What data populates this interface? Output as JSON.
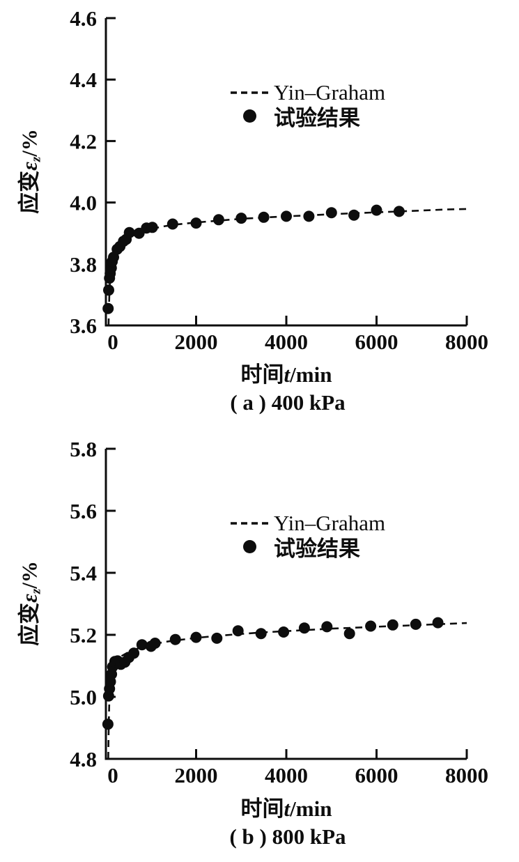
{
  "page_background": "#ffffff",
  "ink_color": "#0d0d0d",
  "chart_data": [
    {
      "type": "scatter",
      "title": "( a ) 400 kPa",
      "xlabel": "时间t/min",
      "xlabel_cjk": "时间",
      "xlabel_var": "t",
      "xlabel_rest": "/min",
      "ylabel": "应变εz/%",
      "ylabel_cjk": "应变",
      "ylabel_var": "ε",
      "ylabel_sub": "z",
      "ylabel_rest": "/%",
      "xlim": [
        0,
        8000
      ],
      "ylim": [
        3.6,
        4.6
      ],
      "xticks": [
        0,
        2000,
        4000,
        6000,
        8000
      ],
      "xtick_labels": [
        "0",
        "2000",
        "4000",
        "6000",
        "8000"
      ],
      "yticks": [
        3.6,
        3.8,
        4.0,
        4.2,
        4.4,
        4.6
      ],
      "ytick_labels": [
        "3.6",
        "3.8",
        "4.0",
        "4.2",
        "4.4",
        "4.6"
      ],
      "grid": false,
      "legend_position": "upper-center",
      "legend": [
        "Yin–Graham",
        "试验结果"
      ],
      "series": [
        {
          "name": "Yin–Graham",
          "style": "dashed-line",
          "points": [
            [
              58,
              3.6
            ],
            [
              66,
              3.65
            ],
            [
              75,
              3.695
            ],
            [
              90,
              3.74
            ],
            [
              110,
              3.775
            ],
            [
              140,
              3.805
            ],
            [
              190,
              3.828
            ],
            [
              260,
              3.848
            ],
            [
              350,
              3.864
            ],
            [
              460,
              3.878
            ],
            [
              600,
              3.892
            ],
            [
              800,
              3.905
            ],
            [
              1000,
              3.914
            ],
            [
              1300,
              3.923
            ],
            [
              1600,
              3.929
            ],
            [
              2000,
              3.935
            ],
            [
              2500,
              3.941
            ],
            [
              3000,
              3.947
            ],
            [
              3500,
              3.951
            ],
            [
              4000,
              3.955
            ],
            [
              4500,
              3.958
            ],
            [
              5000,
              3.962
            ],
            [
              5500,
              3.965
            ],
            [
              6000,
              3.968
            ],
            [
              6500,
              3.971
            ],
            [
              7000,
              3.974
            ],
            [
              7500,
              3.977
            ],
            [
              8000,
              3.979
            ]
          ]
        },
        {
          "name": "试验结果",
          "style": "scatter",
          "points": [
            [
              50,
              3.655
            ],
            [
              62,
              3.715
            ],
            [
              80,
              3.754
            ],
            [
              95,
              3.769
            ],
            [
              120,
              3.787
            ],
            [
              140,
              3.808
            ],
            [
              170,
              3.822
            ],
            [
              250,
              3.848
            ],
            [
              310,
              3.857
            ],
            [
              390,
              3.874
            ],
            [
              450,
              3.88
            ],
            [
              520,
              3.902
            ],
            [
              735,
              3.9
            ],
            [
              900,
              3.917
            ],
            [
              1030,
              3.919
            ],
            [
              1480,
              3.93
            ],
            [
              2000,
              3.933
            ],
            [
              2500,
              3.944
            ],
            [
              3000,
              3.949
            ],
            [
              3500,
              3.952
            ],
            [
              4000,
              3.955
            ],
            [
              4500,
              3.955
            ],
            [
              5000,
              3.967
            ],
            [
              5500,
              3.959
            ],
            [
              6000,
              3.975
            ],
            [
              6500,
              3.971
            ]
          ]
        }
      ]
    },
    {
      "type": "scatter",
      "title": "( b ) 800 kPa",
      "xlabel": "时间t/min",
      "xlabel_cjk": "时间",
      "xlabel_var": "t",
      "xlabel_rest": "/min",
      "ylabel": "应变εz/%",
      "ylabel_cjk": "应变",
      "ylabel_var": "ε",
      "ylabel_sub": "z",
      "ylabel_rest": "/%",
      "xlim": [
        0,
        8000
      ],
      "ylim": [
        4.8,
        5.8
      ],
      "xticks": [
        0,
        2000,
        4000,
        6000,
        8000
      ],
      "xtick_labels": [
        "0",
        "2000",
        "4000",
        "6000",
        "8000"
      ],
      "yticks": [
        4.8,
        5.0,
        5.2,
        5.4,
        5.6,
        5.8
      ],
      "ytick_labels": [
        "4.8",
        "5.0",
        "5.2",
        "5.4",
        "5.6",
        "5.8"
      ],
      "grid": false,
      "legend_position": "upper-center",
      "legend": [
        "Yin–Graham",
        "试验结果"
      ],
      "series": [
        {
          "name": "Yin–Graham",
          "style": "dashed-line",
          "points": [
            [
              52,
              4.8
            ],
            [
              58,
              4.87
            ],
            [
              66,
              4.93
            ],
            [
              76,
              4.985
            ],
            [
              90,
              5.03
            ],
            [
              110,
              5.065
            ],
            [
              140,
              5.092
            ],
            [
              190,
              5.11
            ],
            [
              260,
              5.122
            ],
            [
              350,
              5.132
            ],
            [
              460,
              5.141
            ],
            [
              600,
              5.15
            ],
            [
              800,
              5.161
            ],
            [
              1000,
              5.168
            ],
            [
              1300,
              5.177
            ],
            [
              1600,
              5.183
            ],
            [
              2000,
              5.19
            ],
            [
              2500,
              5.197
            ],
            [
              3000,
              5.203
            ],
            [
              3500,
              5.208
            ],
            [
              4000,
              5.212
            ],
            [
              4500,
              5.216
            ],
            [
              5000,
              5.22
            ],
            [
              5500,
              5.223
            ],
            [
              6000,
              5.226
            ],
            [
              6500,
              5.229
            ],
            [
              7000,
              5.232
            ],
            [
              7500,
              5.235
            ],
            [
              8000,
              5.238
            ]
          ]
        },
        {
          "name": "试验结果",
          "style": "scatter",
          "points": [
            [
              45,
              4.912
            ],
            [
              60,
              5.003
            ],
            [
              80,
              5.026
            ],
            [
              100,
              5.049
            ],
            [
              125,
              5.073
            ],
            [
              150,
              5.097
            ],
            [
              200,
              5.114
            ],
            [
              260,
              5.116
            ],
            [
              330,
              5.105
            ],
            [
              420,
              5.112
            ],
            [
              510,
              5.127
            ],
            [
              620,
              5.141
            ],
            [
              800,
              5.168
            ],
            [
              1000,
              5.163
            ],
            [
              1090,
              5.173
            ],
            [
              1540,
              5.185
            ],
            [
              2000,
              5.192
            ],
            [
              2460,
              5.189
            ],
            [
              2930,
              5.213
            ],
            [
              3440,
              5.204
            ],
            [
              3940,
              5.209
            ],
            [
              4400,
              5.222
            ],
            [
              4900,
              5.226
            ],
            [
              5400,
              5.204
            ],
            [
              5870,
              5.228
            ],
            [
              6360,
              5.232
            ],
            [
              6870,
              5.234
            ],
            [
              7360,
              5.239
            ]
          ]
        }
      ]
    }
  ]
}
